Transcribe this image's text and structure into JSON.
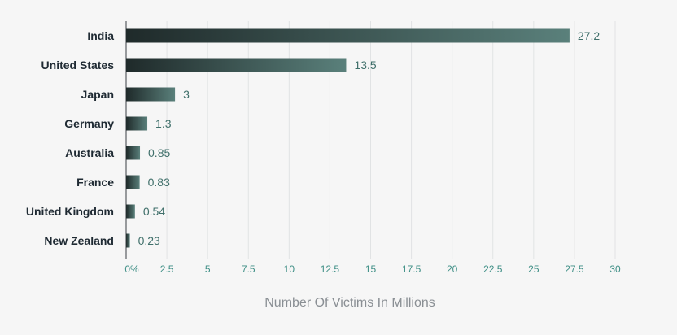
{
  "chart_data": {
    "type": "bar",
    "orientation": "horizontal",
    "categories": [
      "India",
      "United States",
      "Japan",
      "Germany",
      "Australia",
      "France",
      "United Kingdom",
      "New Zealand"
    ],
    "values": [
      27.2,
      13.5,
      3,
      1.3,
      0.85,
      0.83,
      0.54,
      0.23
    ],
    "value_labels": [
      "27.2",
      "13.5",
      "3",
      "1.3",
      "0.85",
      "0.83",
      "0.54",
      "0.23"
    ],
    "x_ticks": [
      {
        "value": 0,
        "label": "0%"
      },
      {
        "value": 2.5,
        "label": "2.5"
      },
      {
        "value": 5,
        "label": "5"
      },
      {
        "value": 7.5,
        "label": "7.5"
      },
      {
        "value": 10,
        "label": "10"
      },
      {
        "value": 12.5,
        "label": "12.5"
      },
      {
        "value": 15,
        "label": "15"
      },
      {
        "value": 17.5,
        "label": "17.5"
      },
      {
        "value": 20,
        "label": "20"
      },
      {
        "value": 22.5,
        "label": "22.5"
      },
      {
        "value": 25,
        "label": "25"
      },
      {
        "value": 27.5,
        "label": "27.5"
      },
      {
        "value": 30,
        "label": "30"
      }
    ],
    "xlim": [
      0,
      30
    ],
    "xlabel": "Number Of Victims In Millions",
    "ylabel": "",
    "title": "",
    "grid": true,
    "colors": {
      "bar_start": "#1f2a2a",
      "bar_end": "#5a807b",
      "value_text": "#3f6f6a",
      "tick_text": "#3f8f86",
      "category_text": "#1f2a33",
      "axis_title_text": "#8a8f94",
      "grid": "#e1e3e4",
      "background": "#f6f6f6"
    }
  }
}
